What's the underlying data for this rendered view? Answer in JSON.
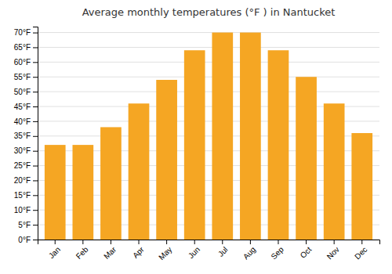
{
  "chart_data": {
    "type": "bar",
    "title": "Average monthly temperatures (°F ) in Nantucket",
    "categories": [
      "Jan",
      "Feb",
      "Mar",
      "Apr",
      "May",
      "Jun",
      "Jul",
      "Aug",
      "Sep",
      "Oct",
      "Nov",
      "Dec"
    ],
    "values": [
      32,
      32,
      38,
      46,
      54,
      64,
      70,
      70,
      64,
      55,
      46,
      36
    ],
    "color": "#F5A623",
    "ylim": [
      0,
      72
    ],
    "yticks": [
      {
        "value": 0,
        "label": "0°F"
      },
      {
        "value": 5,
        "label": "5°F"
      },
      {
        "value": 10,
        "label": "10°F"
      },
      {
        "value": 15,
        "label": "15°F"
      },
      {
        "value": 20,
        "label": "20°F"
      },
      {
        "value": 25,
        "label": "25°F"
      },
      {
        "value": 30,
        "label": "30°F"
      },
      {
        "value": 35,
        "label": "35°F"
      },
      {
        "value": 40,
        "label": "40°F"
      },
      {
        "value": 45,
        "label": "45°F"
      },
      {
        "value": 50,
        "label": "50°F"
      },
      {
        "value": 55,
        "label": "55°F"
      },
      {
        "value": 60,
        "label": "60°F"
      },
      {
        "value": 65,
        "label": "65°F"
      },
      {
        "value": 70,
        "label": "70°F"
      }
    ],
    "grid": true
  }
}
